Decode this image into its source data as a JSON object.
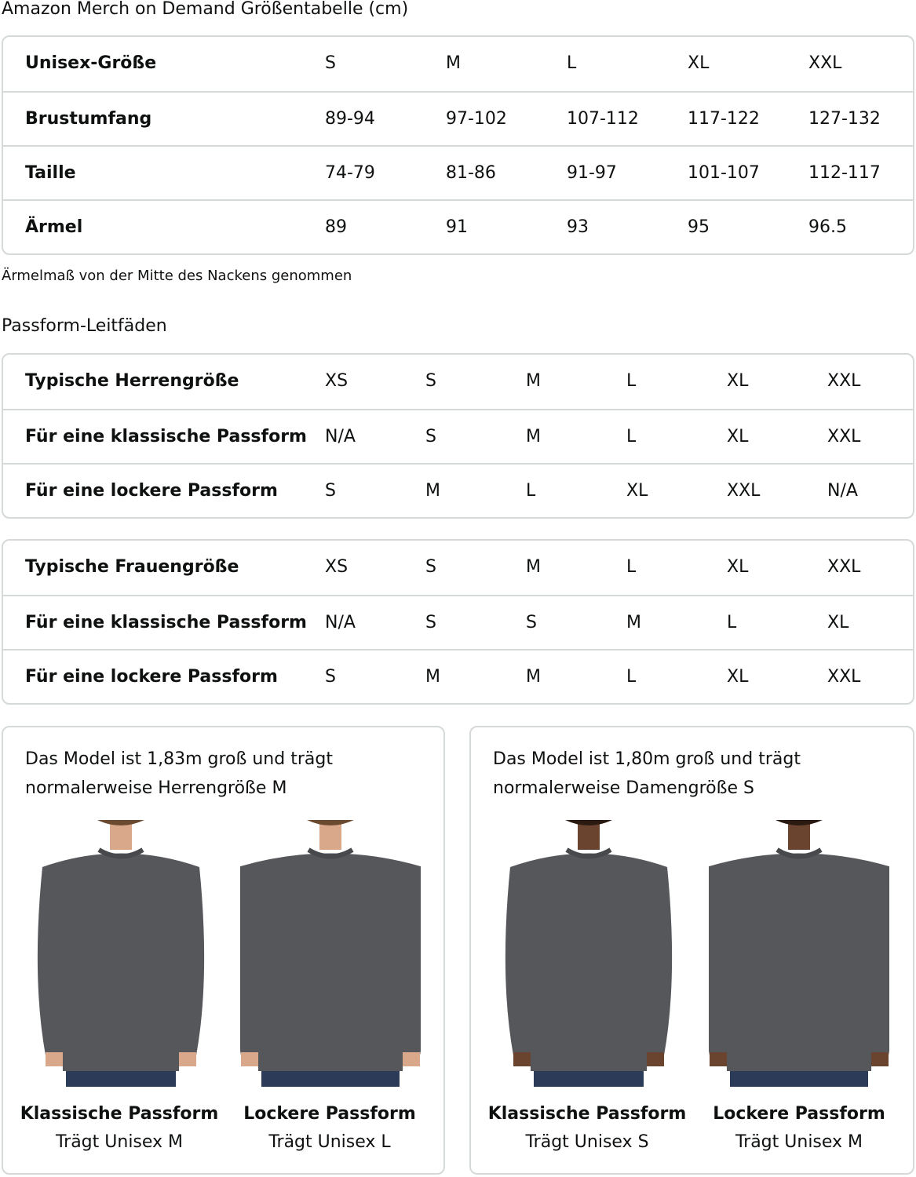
{
  "title": "Amazon Merch on Demand Größentabelle (cm)",
  "size_table": {
    "rows": [
      {
        "label": "Unisex-Größe",
        "values": [
          "S",
          "M",
          "L",
          "XL",
          "XXL"
        ]
      },
      {
        "label": "Brustumfang",
        "values": [
          "89-94",
          "97-102",
          "107-112",
          "117-122",
          "127-132"
        ]
      },
      {
        "label": "Taille",
        "values": [
          "74-79",
          "81-86",
          "91-97",
          "101-107",
          "112-117"
        ]
      },
      {
        "label": "Ärmel",
        "values": [
          "89",
          "91",
          "93",
          "95",
          "96.5"
        ]
      }
    ]
  },
  "note": "Ärmelmaß von der Mitte des Nackens genommen",
  "fit_heading": "Passform-Leitfäden",
  "men_table": {
    "rows": [
      {
        "label": "Typische Herrengröße",
        "values": [
          "XS",
          "S",
          "M",
          "L",
          "XL",
          "XXL"
        ]
      },
      {
        "label": "Für eine klassische Passform",
        "values": [
          "N/A",
          "S",
          "M",
          "L",
          "XL",
          "XXL"
        ]
      },
      {
        "label": "Für eine lockere Passform",
        "values": [
          "S",
          "M",
          "L",
          "XL",
          "XXL",
          "N/A"
        ]
      }
    ]
  },
  "women_table": {
    "rows": [
      {
        "label": "Typische Frauengröße",
        "values": [
          "XS",
          "S",
          "M",
          "L",
          "XL",
          "XXL"
        ]
      },
      {
        "label": "Für eine klassische Passform",
        "values": [
          "N/A",
          "S",
          "S",
          "M",
          "L",
          "XL"
        ]
      },
      {
        "label": "Für eine lockere Passform",
        "values": [
          "S",
          "M",
          "M",
          "L",
          "XL",
          "XXL"
        ]
      }
    ]
  },
  "panels": [
    {
      "text_line1": "Das Model ist 1,83m groß und trägt",
      "text_line2": "normalerweise Herrengröße M",
      "figures": [
        {
          "fit": "Klassische Passform",
          "wears": "Trägt Unisex M"
        },
        {
          "fit": "Lockere Passform",
          "wears": "Trägt Unisex L"
        }
      ]
    },
    {
      "text_line1": "Das Model ist 1,80m groß und trägt",
      "text_line2": "normalerweise Damengröße S",
      "figures": [
        {
          "fit": "Klassische Passform",
          "wears": "Trägt Unisex S"
        },
        {
          "fit": "Lockere Passform",
          "wears": "Trägt Unisex M"
        }
      ]
    }
  ],
  "colors": {
    "border": "#d5d9d9",
    "sweater": "#56575a",
    "jeans": "#2c3b57"
  }
}
